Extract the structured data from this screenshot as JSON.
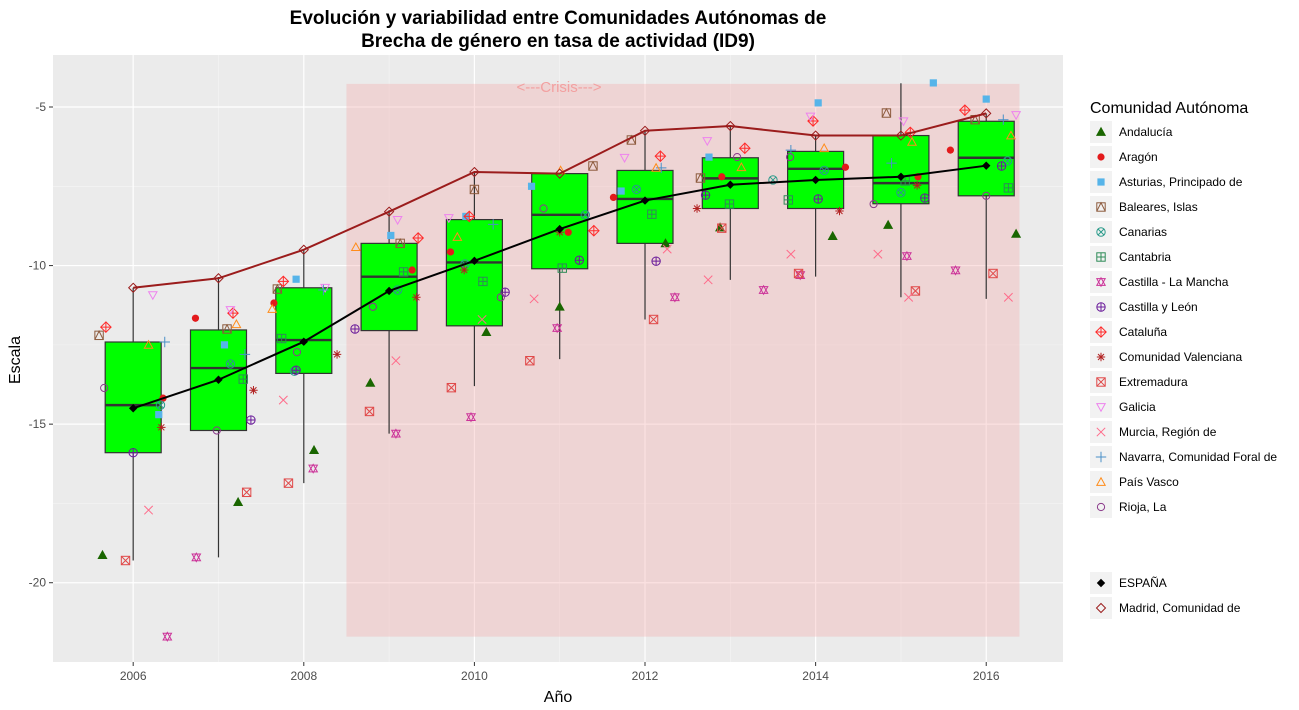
{
  "chart_data": {
    "type": "boxplot-scatter-line",
    "title": "Evolución y variabilidad entre Comunidades Autónomas de",
    "subtitle": "Brecha de género en tasa de actividad (ID9)",
    "xlabel": "Año",
    "ylabel": "Escala",
    "xlim": [
      2005.06,
      2016.9
    ],
    "ylim": [
      -22.5,
      -3.36
    ],
    "x_ticks": [
      2006,
      2008,
      2010,
      2012,
      2014,
      2016
    ],
    "y_ticks": [
      -5,
      -10,
      -15,
      -20
    ],
    "grid": true,
    "annotation": {
      "text": "<---Crisis--->",
      "x_range": [
        2008.5,
        2016.39
      ],
      "y_range": [
        -21.7,
        -4.27
      ],
      "color": "#f2a0a0"
    },
    "box_color": "#00ff00",
    "boxes": [
      {
        "year": 2006,
        "low": -19.3,
        "q1": -15.9,
        "median": -14.4,
        "q3": -12.41,
        "high": -10.7
      },
      {
        "year": 2007,
        "low": -19.2,
        "q1": -15.2,
        "median": -13.23,
        "q3": -12.03,
        "high": -10.36
      },
      {
        "year": 2008,
        "low": -16.86,
        "q1": -13.4,
        "median": -12.35,
        "q3": -10.7,
        "high": -9.5
      },
      {
        "year": 2009,
        "low": -15.3,
        "q1": -12.05,
        "median": -10.35,
        "q3": -9.3,
        "high": -8.25
      },
      {
        "year": 2010,
        "low": -13.8,
        "q1": -11.9,
        "median": -9.9,
        "q3": -8.55,
        "high": -7.05
      },
      {
        "year": 2011,
        "low": -12.95,
        "q1": -10.1,
        "median": -8.4,
        "q3": -7.1,
        "high": -7.1
      },
      {
        "year": 2012,
        "low": -11.7,
        "q1": -9.3,
        "median": -7.9,
        "q3": -7.0,
        "high": -5.75
      },
      {
        "year": 2013,
        "low": -10.45,
        "q1": -8.2,
        "median": -7.25,
        "q3": -6.6,
        "high": -5.6
      },
      {
        "year": 2014,
        "low": -10.35,
        "q1": -8.2,
        "median": -6.95,
        "q3": -6.4,
        "high": -5.9
      },
      {
        "year": 2015,
        "low": -11.0,
        "q1": -8.05,
        "median": -7.4,
        "q3": -5.9,
        "high": -4.25
      },
      {
        "year": 2016,
        "low": -11.05,
        "q1": -7.8,
        "median": -6.6,
        "q3": -5.45,
        "high": -5.2
      }
    ],
    "legend_title": "Comunidad Autónoma",
    "legend_position": "right",
    "series": [
      {
        "name": "Andalucía",
        "shape": "tri-fill",
        "color": "#1a6600",
        "points": [
          [
            2005.64,
            -19.13
          ],
          [
            2007.23,
            -17.46
          ],
          [
            2008.12,
            -15.82
          ],
          [
            2008.78,
            -13.7
          ],
          [
            2010.14,
            -12.1
          ],
          [
            2011.0,
            -11.3
          ],
          [
            2012.24,
            -9.3
          ],
          [
            2012.88,
            -8.8
          ],
          [
            2014.2,
            -9.07
          ],
          [
            2014.85,
            -8.72
          ],
          [
            2016.35,
            -9.0
          ]
        ]
      },
      {
        "name": "Aragón",
        "shape": "circle-fill",
        "color": "#e31a1c",
        "points": [
          [
            2006.35,
            -14.18
          ],
          [
            2006.73,
            -11.66
          ],
          [
            2007.65,
            -11.18
          ],
          [
            2009.27,
            -10.14
          ],
          [
            2009.72,
            -9.57
          ],
          [
            2011.1,
            -8.95
          ],
          [
            2011.63,
            -7.85
          ],
          [
            2012.9,
            -7.2
          ],
          [
            2014.35,
            -6.9
          ],
          [
            2015.2,
            -7.2
          ],
          [
            2015.58,
            -6.36
          ]
        ]
      },
      {
        "name": "Asturias, Principado de",
        "shape": "square-fill",
        "color": "#56b4e9",
        "points": [
          [
            2006.3,
            -14.7
          ],
          [
            2007.07,
            -12.5
          ],
          [
            2007.91,
            -10.43
          ],
          [
            2009.02,
            -9.05
          ],
          [
            2009.9,
            -8.45
          ],
          [
            2010.67,
            -7.5
          ],
          [
            2011.72,
            -7.65
          ],
          [
            2012.75,
            -6.58
          ],
          [
            2014.03,
            -4.87
          ],
          [
            2015.38,
            -4.24
          ],
          [
            2016.0,
            -4.75
          ]
        ]
      },
      {
        "name": "Baleares, Islas",
        "shape": "square-tri",
        "color": "#8c5a3c",
        "points": [
          [
            2005.6,
            -12.2
          ],
          [
            2007.1,
            -12.0
          ],
          [
            2007.69,
            -10.74
          ],
          [
            2009.13,
            -9.3
          ],
          [
            2010.0,
            -7.6
          ],
          [
            2011.39,
            -6.86
          ],
          [
            2011.84,
            -6.04
          ],
          [
            2012.65,
            -7.24
          ],
          [
            2014.83,
            -5.19
          ],
          [
            2015.87,
            -5.4
          ]
        ]
      },
      {
        "name": "Canarias",
        "shape": "circle-x",
        "color": "#2a9a8a",
        "points": [
          [
            2006.32,
            -14.4
          ],
          [
            2007.14,
            -13.1
          ],
          [
            2007.89,
            -13.33
          ],
          [
            2009.1,
            -10.77
          ],
          [
            2009.89,
            -9.95
          ],
          [
            2011.3,
            -8.4
          ],
          [
            2011.9,
            -7.6
          ],
          [
            2013.5,
            -7.3
          ],
          [
            2014.1,
            -7.0
          ],
          [
            2015.0,
            -7.7
          ],
          [
            2016.25,
            -6.7
          ]
        ]
      },
      {
        "name": "Cantabria",
        "shape": "square-plus",
        "color": "#2e8b57",
        "points": [
          [
            2007.29,
            -13.58
          ],
          [
            2007.74,
            -12.3
          ],
          [
            2009.17,
            -10.2
          ],
          [
            2010.1,
            -10.5
          ],
          [
            2011.03,
            -10.08
          ],
          [
            2012.08,
            -8.38
          ],
          [
            2012.99,
            -8.06
          ],
          [
            2013.68,
            -7.93
          ],
          [
            2015.05,
            -7.33
          ],
          [
            2016.26,
            -7.55
          ]
        ]
      },
      {
        "name": "Castilla - La Mancha",
        "shape": "star",
        "color": "#cc3399",
        "points": [
          [
            2006.4,
            -21.7
          ],
          [
            2006.74,
            -19.2
          ],
          [
            2008.11,
            -16.4
          ],
          [
            2009.08,
            -15.3
          ],
          [
            2009.96,
            -14.78
          ],
          [
            2010.97,
            -11.97
          ],
          [
            2012.35,
            -11.0
          ],
          [
            2013.39,
            -10.77
          ],
          [
            2013.82,
            -10.3
          ],
          [
            2015.07,
            -9.7
          ],
          [
            2015.64,
            -10.15
          ]
        ]
      },
      {
        "name": "Castilla y León",
        "shape": "circle-plus",
        "color": "#6a1b9a",
        "points": [
          [
            2006.0,
            -15.9
          ],
          [
            2007.38,
            -14.87
          ],
          [
            2007.91,
            -13.3
          ],
          [
            2008.6,
            -12.0
          ],
          [
            2010.36,
            -10.84
          ],
          [
            2011.23,
            -9.83
          ],
          [
            2012.13,
            -9.86
          ],
          [
            2012.71,
            -7.78
          ],
          [
            2014.03,
            -7.9
          ],
          [
            2015.28,
            -7.87
          ],
          [
            2016.18,
            -6.86
          ]
        ]
      },
      {
        "name": "Cataluña",
        "shape": "diamond-plus",
        "color": "#ff2a2a",
        "points": [
          [
            2005.68,
            -11.94
          ],
          [
            2007.17,
            -11.5
          ],
          [
            2007.76,
            -10.5
          ],
          [
            2009.34,
            -9.13
          ],
          [
            2009.94,
            -8.45
          ],
          [
            2011.4,
            -8.9
          ],
          [
            2012.18,
            -6.55
          ],
          [
            2013.17,
            -6.3
          ],
          [
            2013.97,
            -5.44
          ],
          [
            2015.11,
            -5.8
          ],
          [
            2015.75,
            -5.1
          ]
        ]
      },
      {
        "name": "Comunidad Valenciana",
        "shape": "asterisk",
        "color": "#b22222",
        "points": [
          [
            2006.33,
            -15.1
          ],
          [
            2007.41,
            -13.93
          ],
          [
            2008.39,
            -12.8
          ],
          [
            2009.32,
            -11.0
          ],
          [
            2009.88,
            -10.14
          ],
          [
            2011.0,
            -8.95
          ],
          [
            2012.61,
            -8.2
          ],
          [
            2014.28,
            -8.28
          ],
          [
            2015.19,
            -7.47
          ]
        ]
      },
      {
        "name": "Extremadura",
        "shape": "square-x",
        "color": "#e04848",
        "points": [
          [
            2005.91,
            -19.3
          ],
          [
            2007.33,
            -17.15
          ],
          [
            2007.82,
            -16.86
          ],
          [
            2008.77,
            -14.6
          ],
          [
            2009.73,
            -13.85
          ],
          [
            2010.65,
            -13.0
          ],
          [
            2012.1,
            -11.7
          ],
          [
            2012.9,
            -8.82
          ],
          [
            2013.8,
            -10.25
          ],
          [
            2015.17,
            -10.8
          ],
          [
            2016.08,
            -10.25
          ]
        ]
      },
      {
        "name": "Galicia",
        "shape": "tri-down",
        "color": "#ee82ee",
        "points": [
          [
            2006.23,
            -10.93
          ],
          [
            2007.14,
            -11.4
          ],
          [
            2008.25,
            -10.7
          ],
          [
            2009.1,
            -8.56
          ],
          [
            2009.7,
            -8.5
          ],
          [
            2011.76,
            -6.6
          ],
          [
            2012.73,
            -6.07
          ],
          [
            2013.94,
            -5.3
          ],
          [
            2015.03,
            -5.45
          ],
          [
            2016.35,
            -5.25
          ]
        ]
      },
      {
        "name": "Murcia, Región de",
        "shape": "x",
        "color": "#ff6b8a",
        "points": [
          [
            2006.18,
            -17.71
          ],
          [
            2007.76,
            -14.24
          ],
          [
            2009.08,
            -13.0
          ],
          [
            2010.09,
            -11.7
          ],
          [
            2010.7,
            -11.05
          ],
          [
            2012.26,
            -9.48
          ],
          [
            2012.74,
            -10.45
          ],
          [
            2013.71,
            -9.64
          ],
          [
            2014.73,
            -9.64
          ],
          [
            2015.09,
            -11.0
          ],
          [
            2016.26,
            -11.0
          ]
        ]
      },
      {
        "name": "Navarra, Comunidad Foral de",
        "shape": "plus",
        "color": "#4a90c8",
        "points": [
          [
            2006.37,
            -12.41
          ],
          [
            2007.31,
            -12.8
          ],
          [
            2008.23,
            -10.77
          ],
          [
            2010.22,
            -8.7
          ],
          [
            2012.19,
            -6.92
          ],
          [
            2013.71,
            -6.36
          ],
          [
            2014.89,
            -6.77
          ],
          [
            2016.2,
            -5.4
          ]
        ]
      },
      {
        "name": "País Vasco",
        "shape": "tri-open",
        "color": "#ff8c1a",
        "points": [
          [
            2006.18,
            -12.5
          ],
          [
            2007.21,
            -11.85
          ],
          [
            2007.63,
            -11.37
          ],
          [
            2008.61,
            -9.42
          ],
          [
            2009.8,
            -9.1
          ],
          [
            2011.01,
            -7.0
          ],
          [
            2012.13,
            -6.92
          ],
          [
            2013.13,
            -6.9
          ],
          [
            2014.1,
            -6.3
          ],
          [
            2015.13,
            -6.1
          ],
          [
            2016.29,
            -5.9
          ]
        ]
      },
      {
        "name": "Rioja, La",
        "shape": "circle-open",
        "color": "#8b3a8b",
        "points": [
          [
            2005.66,
            -13.86
          ],
          [
            2006.98,
            -15.2
          ],
          [
            2007.92,
            -12.73
          ],
          [
            2008.81,
            -11.3
          ],
          [
            2010.31,
            -11.0
          ],
          [
            2010.81,
            -8.2
          ],
          [
            2013.08,
            -6.58
          ],
          [
            2013.7,
            -6.58
          ],
          [
            2014.68,
            -8.06
          ],
          [
            2016.0,
            -7.8
          ]
        ]
      }
    ],
    "lines": [
      {
        "name": "ESPAÑA",
        "shape": "diamond-fill",
        "color": "#000000",
        "x": [
          2006,
          2007,
          2008,
          2009,
          2010,
          2011,
          2012,
          2013,
          2014,
          2015,
          2016
        ],
        "y": [
          -14.5,
          -13.6,
          -12.4,
          -10.8,
          -9.85,
          -8.85,
          -7.95,
          -7.45,
          -7.3,
          -7.2,
          -6.85
        ]
      },
      {
        "name": "Madrid, Comunidad de",
        "shape": "diamond-open",
        "color": "#9b1c1c",
        "x": [
          2006,
          2007,
          2008,
          2009,
          2010,
          2011,
          2012,
          2013,
          2014,
          2015,
          2016
        ],
        "y": [
          -10.7,
          -10.4,
          -9.5,
          -8.3,
          -7.05,
          -7.1,
          -5.75,
          -5.6,
          -5.9,
          -5.9,
          -5.2
        ]
      }
    ]
  }
}
